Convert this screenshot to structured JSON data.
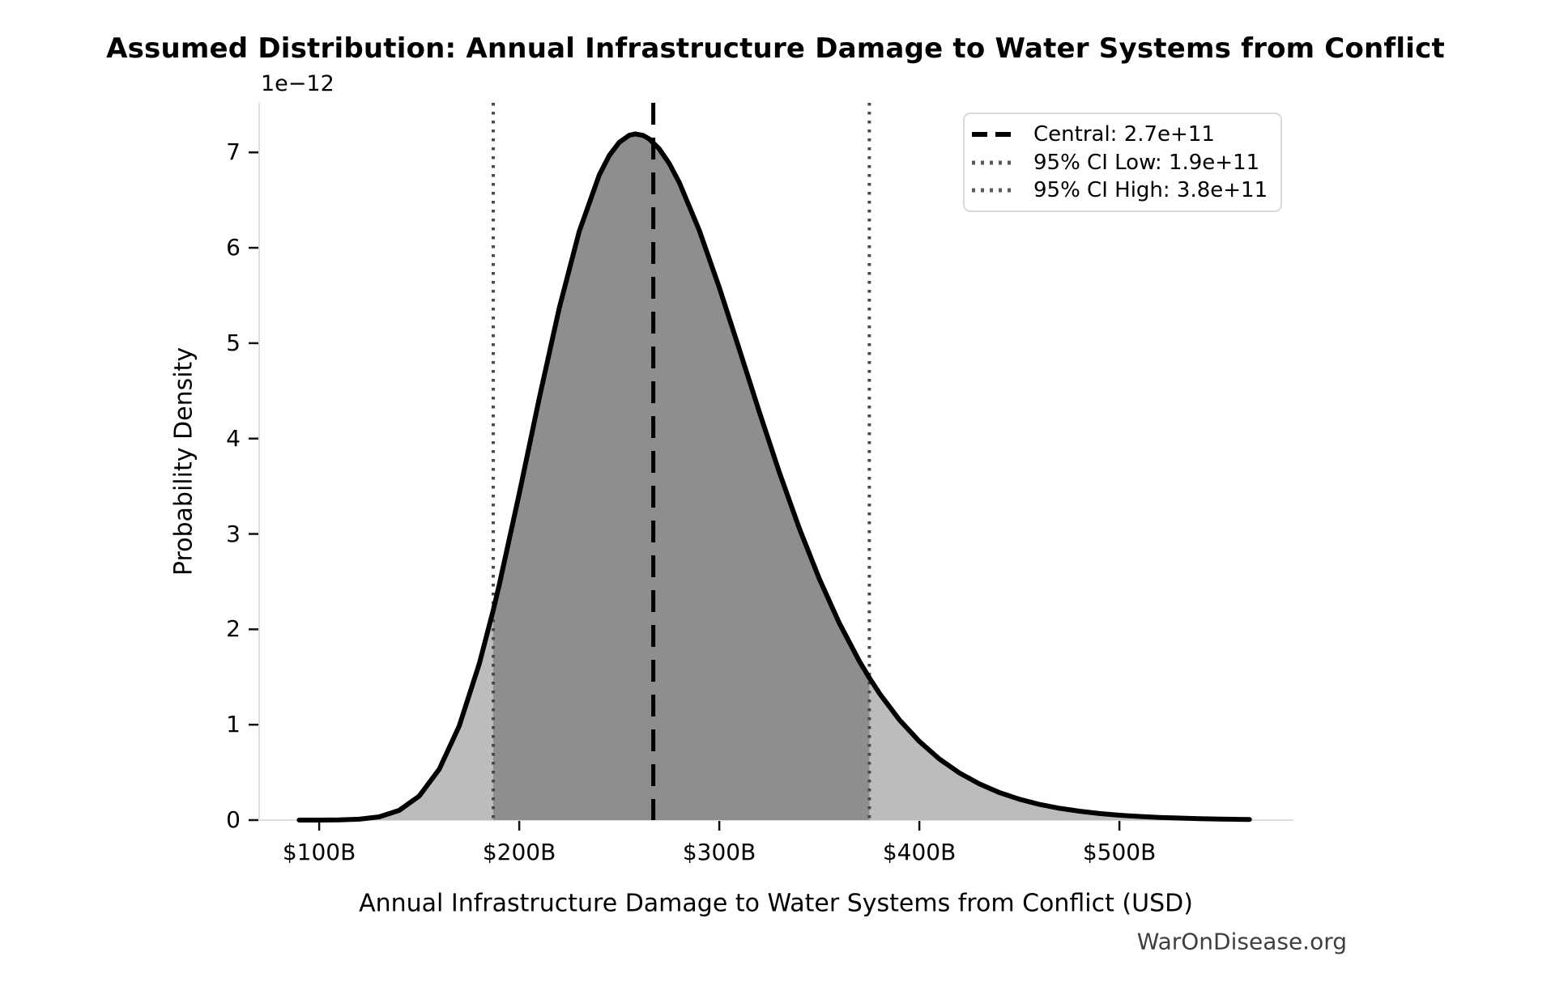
{
  "watermark": "WarOnDisease.org",
  "chart_data": {
    "type": "area",
    "title": "Assumed Distribution: Annual Infrastructure Damage to Water Systems from Conflict",
    "xlabel": "Annual Infrastructure Damage to Water Systems from Conflict (USD)",
    "ylabel": "Probability Density",
    "y_scale_offset_label": "1e−12",
    "grid": false,
    "legend_position": "upper right",
    "x_tick_labels": [
      "$100B",
      "$200B",
      "$300B",
      "$400B",
      "$500B"
    ],
    "x_tick_values_billion_usd": [
      100,
      200,
      300,
      400,
      500
    ],
    "y_tick_values": [
      0,
      1,
      2,
      3,
      4,
      5,
      6,
      7
    ],
    "xlim_billion_usd": [
      70,
      587
    ],
    "ylim_density_1e12": [
      0,
      7.52
    ],
    "central_line": {
      "label": "Central: 2.7e+11",
      "value_billion_usd": 267,
      "style": "dashed",
      "color": "#000000"
    },
    "ci_low_line": {
      "label": "95% CI Low: 1.9e+11",
      "value_billion_usd": 187,
      "style": "dotted",
      "color": "#4a4a4a"
    },
    "ci_high_line": {
      "label": "95% CI High: 3.8e+11",
      "value_billion_usd": 375,
      "style": "dotted",
      "color": "#4a4a4a"
    },
    "colors": {
      "curve": "#000000",
      "fill_outside_ci": "#bcbcbc",
      "fill_inside_ci": "#8e8e8e",
      "spine": "#dedede",
      "tick": "#111111",
      "watermark": "#3f3f3f"
    },
    "curve": {
      "note": "probability density (units of 1e-12 per USD) vs damage in billions USD; lognormal-shaped, peak ~7.19e-12 near $258B",
      "x_billion_usd": [
        90,
        100,
        110,
        120,
        130,
        140,
        150,
        160,
        170,
        180,
        187,
        190,
        200,
        210,
        220,
        230,
        240,
        245,
        250,
        255,
        258,
        262,
        265,
        270,
        275,
        280,
        290,
        300,
        310,
        320,
        330,
        340,
        350,
        360,
        370,
        375,
        380,
        390,
        400,
        410,
        420,
        430,
        440,
        450,
        460,
        470,
        480,
        490,
        500,
        510,
        520,
        530,
        540,
        550,
        560,
        565
      ],
      "density_1e12": [
        0.0,
        0.0003,
        0.0018,
        0.0092,
        0.034,
        0.102,
        0.252,
        0.533,
        0.987,
        1.637,
        2.201,
        2.466,
        3.422,
        4.422,
        5.368,
        6.172,
        6.764,
        6.968,
        7.106,
        7.18,
        7.194,
        7.178,
        7.141,
        7.037,
        6.883,
        6.685,
        6.183,
        5.584,
        4.936,
        4.28,
        3.647,
        3.059,
        2.53,
        2.065,
        1.666,
        1.491,
        1.33,
        1.052,
        0.825,
        0.641,
        0.495,
        0.38,
        0.289,
        0.219,
        0.165,
        0.124,
        0.093,
        0.069,
        0.051,
        0.038,
        0.028,
        0.021,
        0.015,
        0.011,
        0.008,
        0.007
      ]
    }
  }
}
